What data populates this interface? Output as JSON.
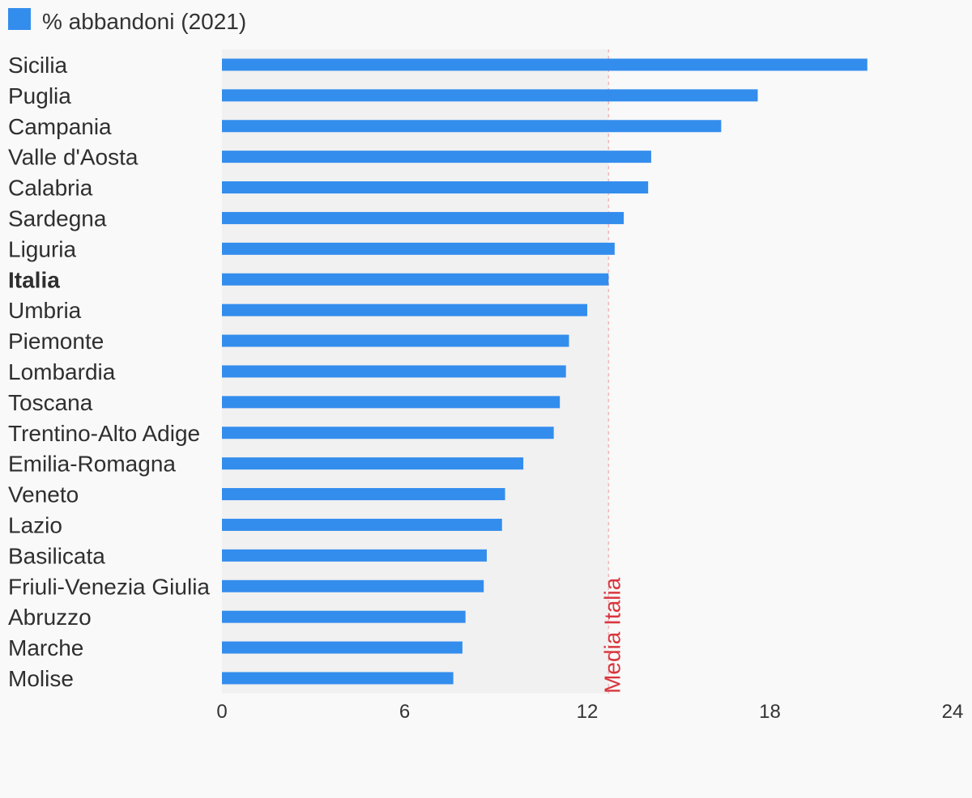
{
  "chart_data": {
    "type": "bar",
    "orientation": "horizontal",
    "title": "",
    "xlabel": "",
    "ylabel": "",
    "legend": {
      "label": "% abbandoni (2021)",
      "color": "#338ded",
      "placement": "top-left"
    },
    "categories": [
      "Sicilia",
      "Puglia",
      "Campania",
      "Valle d'Aosta",
      "Calabria",
      "Sardegna",
      "Liguria",
      "Italia",
      "Umbria",
      "Piemonte",
      "Lombardia",
      "Toscana",
      "Trentino-Alto Adige",
      "Emilia-Romagna",
      "Veneto",
      "Lazio",
      "Basilicata",
      "Friuli-Venezia Giulia",
      "Abruzzo",
      "Marche",
      "Molise"
    ],
    "highlight_category": "Italia",
    "series": [
      {
        "name": "% abbandoni (2021)",
        "values": [
          21.2,
          17.6,
          16.4,
          14.1,
          14.0,
          13.2,
          12.9,
          12.7,
          12.0,
          11.4,
          11.3,
          11.1,
          10.9,
          9.9,
          9.3,
          9.2,
          8.7,
          8.6,
          8.0,
          7.9,
          7.6
        ]
      }
    ],
    "xlim": [
      0,
      24
    ],
    "xticks": [
      "0",
      "6",
      "12",
      "18",
      "24"
    ],
    "reference_line": {
      "value": 12.7,
      "label": "Media Italia",
      "color": "#d9363e"
    },
    "shaded_band": [
      0,
      12.7
    ],
    "grid": false
  }
}
